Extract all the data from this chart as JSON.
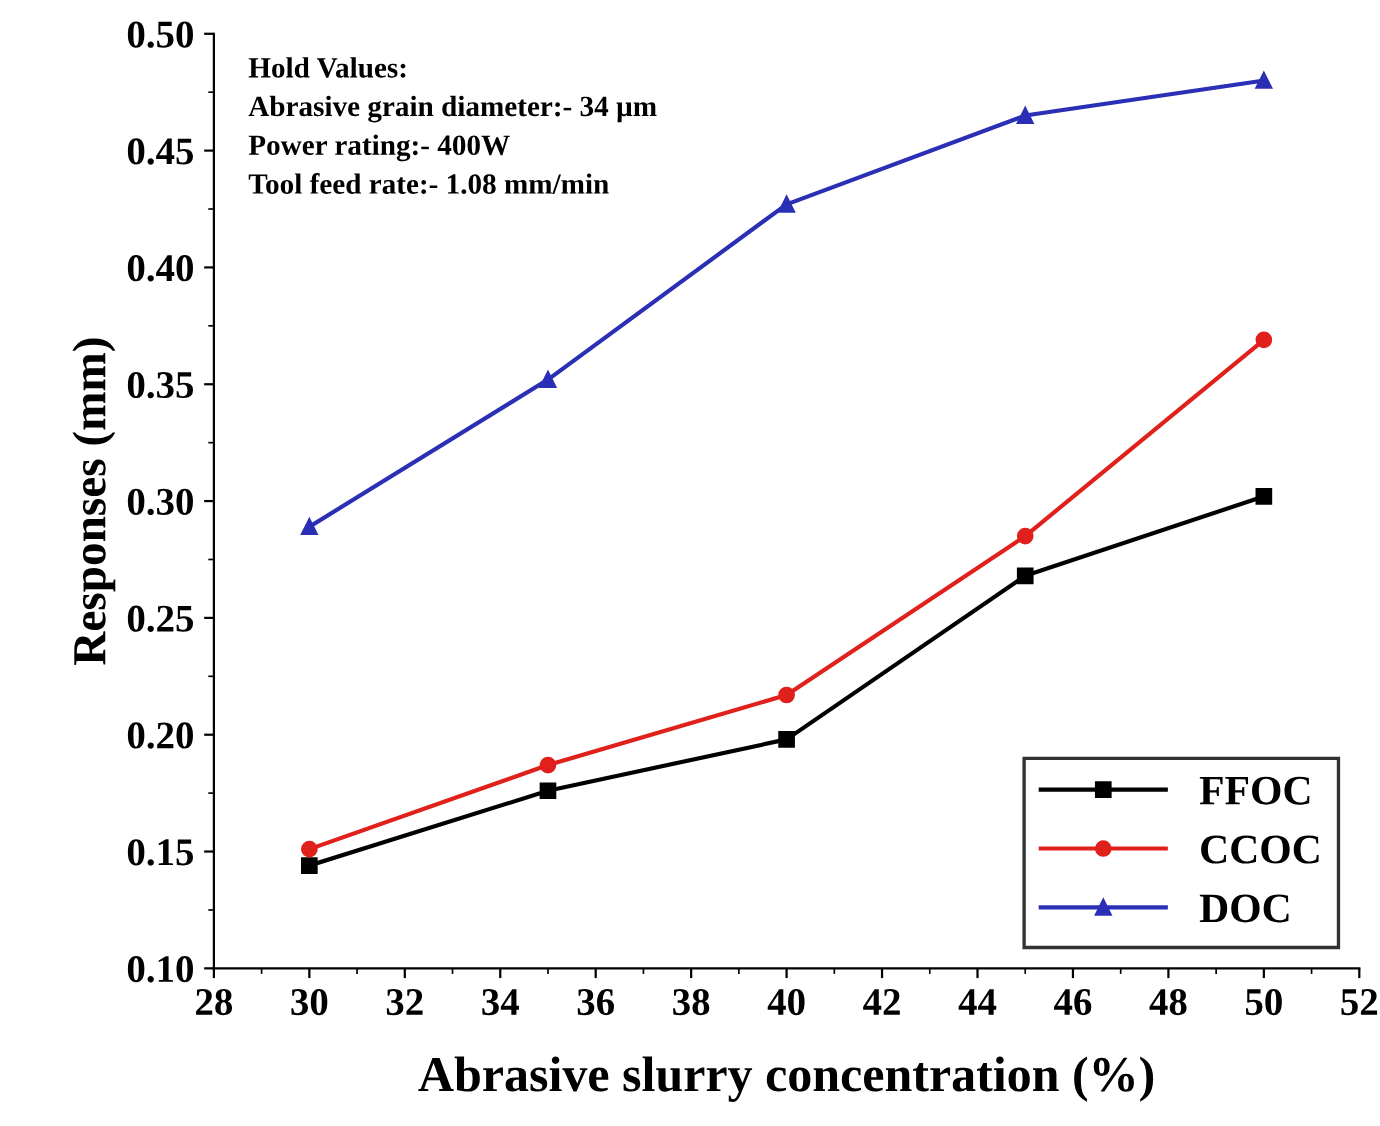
{
  "chart_data": {
    "type": "line",
    "xlabel": "Abrasive slurry concentration (%)",
    "ylabel": "Responses (mm)",
    "x": [
      30,
      35,
      40,
      45,
      50
    ],
    "series": [
      {
        "name": "FFOC",
        "color": "#000000",
        "marker": "square",
        "values": [
          0.144,
          0.176,
          0.198,
          0.268,
          0.302
        ]
      },
      {
        "name": "CCOC",
        "color": "#e0201b",
        "marker": "circle",
        "values": [
          0.151,
          0.187,
          0.217,
          0.285,
          0.369
        ]
      },
      {
        "name": "DOC",
        "color": "#2b2fb5",
        "marker": "triangle",
        "values": [
          0.289,
          0.352,
          0.427,
          0.465,
          0.48
        ]
      }
    ],
    "xlim": [
      28,
      52
    ],
    "xticks": [
      28,
      30,
      32,
      34,
      36,
      38,
      40,
      42,
      44,
      46,
      48,
      50,
      52
    ],
    "ylim": [
      0.1,
      0.5
    ],
    "yticks": [
      {
        "value": 0.1,
        "label": "0.10"
      },
      {
        "value": 0.15,
        "label": "0.15"
      },
      {
        "value": 0.2,
        "label": "0.20"
      },
      {
        "value": 0.25,
        "label": "0.25"
      },
      {
        "value": 0.3,
        "label": "0.30"
      },
      {
        "value": 0.35,
        "label": "0.35"
      },
      {
        "value": 0.4,
        "label": "0.40"
      },
      {
        "value": 0.45,
        "label": "0.45"
      },
      {
        "value": 0.5,
        "label": "0.50"
      }
    ],
    "annotations": [
      "Hold Values:\nAbrasive grain diameter:- 34 µm\nPower rating:- 400W\nTool feed rate:- 1.08 mm/min"
    ],
    "legend": "bottom right",
    "grid": false,
    "line_style": "solid"
  }
}
